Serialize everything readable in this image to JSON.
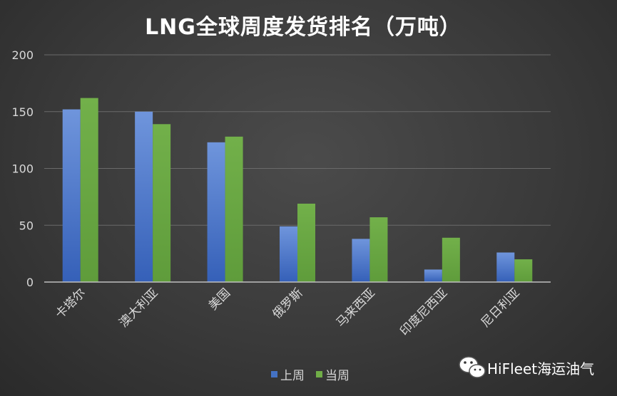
{
  "chart_data": {
    "type": "bar",
    "title": "LNG全球周度发货排名（万吨）",
    "categories": [
      "卡塔尔",
      "澳大利亚",
      "美国",
      "俄罗斯",
      "马来西亚",
      "印度尼西亚",
      "尼日利亚"
    ],
    "series": [
      {
        "name": "上周",
        "color": "#4472c4",
        "values": [
          152,
          150,
          123,
          49,
          38,
          11,
          26
        ]
      },
      {
        "name": "当周",
        "color": "#70ad47",
        "values": [
          162,
          139,
          128,
          69,
          57,
          39,
          20
        ]
      }
    ],
    "ylim": [
      0,
      200
    ],
    "yticks": [
      0,
      50,
      100,
      150,
      200
    ],
    "grid": true,
    "legend": "bottom"
  },
  "watermark": {
    "text": "HiFleet海运油气",
    "icon": "wechat-icon"
  }
}
